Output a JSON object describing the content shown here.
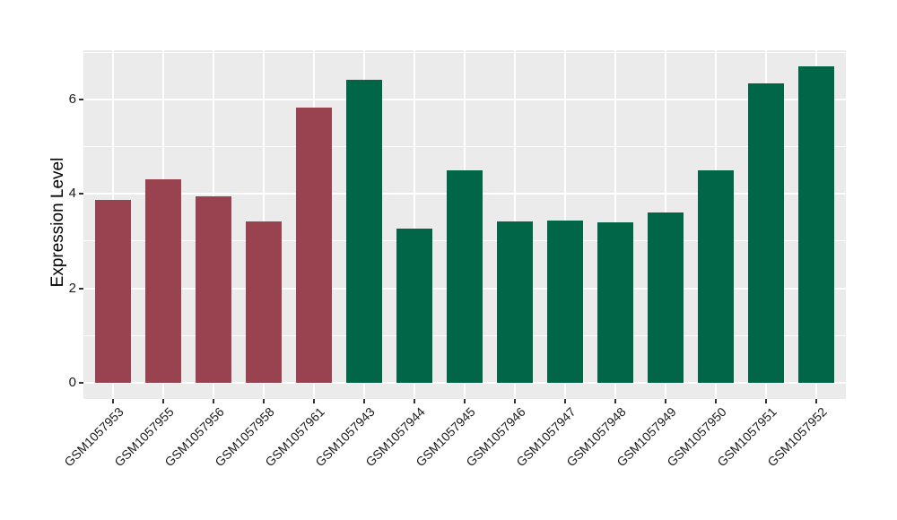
{
  "chart_data": {
    "type": "bar",
    "title": "",
    "xlabel": "",
    "ylabel": "Expression Level",
    "categories": [
      "GSM1057953",
      "GSM1057955",
      "GSM1057956",
      "GSM1057958",
      "GSM1057961",
      "GSM1057943",
      "GSM1057944",
      "GSM1057945",
      "GSM1057946",
      "GSM1057947",
      "GSM1057948",
      "GSM1057949",
      "GSM1057950",
      "GSM1057951",
      "GSM1057952"
    ],
    "values": [
      3.88,
      4.31,
      3.95,
      3.42,
      5.82,
      6.41,
      3.27,
      4.5,
      3.41,
      3.44,
      3.39,
      3.61,
      4.5,
      6.33,
      6.69
    ],
    "bar_groups": [
      "group1",
      "group1",
      "group1",
      "group1",
      "group1",
      "group2",
      "group2",
      "group2",
      "group2",
      "group2",
      "group2",
      "group2",
      "group2",
      "group2",
      "group2"
    ],
    "group_colors": {
      "group1": "#9A4350",
      "group2": "#006647"
    },
    "ylim": [
      0,
      7.05
    ],
    "yticks": [
      0,
      2,
      4,
      6
    ],
    "yticks_minor": [
      1,
      3,
      5,
      7
    ],
    "grid": "on",
    "legend_position": "none",
    "panel_background": "#EBEBEB",
    "grid_color": "#FFFFFF",
    "tick_color": "#333333",
    "text_color": "#1a1a1a"
  }
}
